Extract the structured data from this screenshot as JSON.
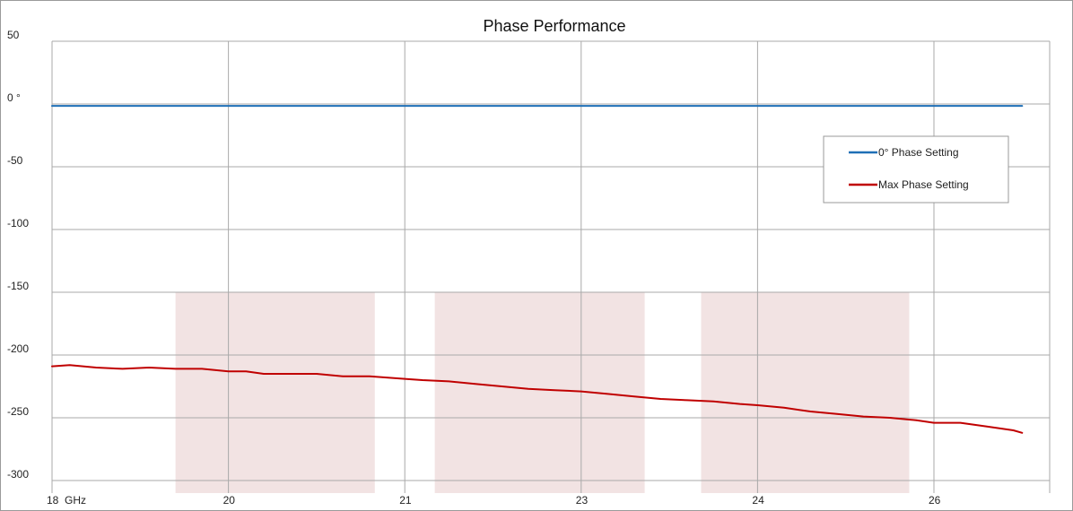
{
  "chart_data": {
    "type": "line",
    "title": "Phase Performance",
    "xlabel": "",
    "ylabel": "",
    "x_unit_label": "GHz",
    "ylim": [
      -300,
      50
    ],
    "y_ticks": [
      {
        "value": 50,
        "label": "50"
      },
      {
        "value": 0,
        "label": "0 °"
      },
      {
        "value": -50,
        "label": "-50"
      },
      {
        "value": -100,
        "label": "-100"
      },
      {
        "value": -150,
        "label": "-150"
      },
      {
        "value": -200,
        "label": "-200"
      },
      {
        "value": -250,
        "label": "-250"
      },
      {
        "value": -300,
        "label": "-300"
      }
    ],
    "x_ticks": [
      "18",
      "20",
      "21",
      "23",
      "24",
      "26"
    ],
    "grid": true,
    "legend_position": "right",
    "series": [
      {
        "name": "0° Phase Setting",
        "color": "#1f6fb6",
        "x_index": [
          0,
          0.5,
          1,
          1.5,
          2,
          2.5,
          3,
          3.5,
          4,
          4.5,
          5,
          5.5
        ],
        "values": [
          -1.5,
          -1.5,
          -1.5,
          -1.5,
          -1.5,
          -1.5,
          -1.5,
          -1.5,
          -1.5,
          -1.5,
          -1.5,
          -1.5
        ]
      },
      {
        "name": "Max Phase Setting",
        "color": "#c00000",
        "x_index": [
          0,
          0.1,
          0.25,
          0.4,
          0.55,
          0.7,
          0.85,
          1.0,
          1.1,
          1.2,
          1.35,
          1.5,
          1.65,
          1.8,
          2.0,
          2.1,
          2.25,
          2.4,
          2.55,
          2.7,
          2.85,
          3.0,
          3.15,
          3.3,
          3.45,
          3.6,
          3.75,
          3.9,
          4.0,
          4.15,
          4.3,
          4.45,
          4.6,
          4.75,
          4.9,
          5.0,
          5.15,
          5.3,
          5.45,
          5.5
        ],
        "values": [
          -209,
          -208,
          -210,
          -211,
          -210,
          -211,
          -211,
          -213,
          -213,
          -215,
          -215,
          -215,
          -217,
          -217,
          -219,
          -220,
          -221,
          -223,
          -225,
          -227,
          -228,
          -229,
          -231,
          -233,
          -235,
          -236,
          -237,
          -239,
          -240,
          -242,
          -245,
          -247,
          -249,
          -250,
          -252,
          -254,
          -254,
          -257,
          -260,
          -262
        ]
      }
    ],
    "shaded_bands": [
      {
        "x_start_index": 0.7,
        "x_end_index": 1.83,
        "y_top": -150,
        "y_bottom": -300
      },
      {
        "x_start_index": 2.17,
        "x_end_index": 3.36,
        "y_top": -150,
        "y_bottom": -300
      },
      {
        "x_start_index": 3.68,
        "x_end_index": 4.86,
        "y_top": -150,
        "y_bottom": -300
      }
    ],
    "colors": {
      "grid": "#a9a9a9",
      "band": "#f2e3e3",
      "border": "#888888"
    }
  }
}
